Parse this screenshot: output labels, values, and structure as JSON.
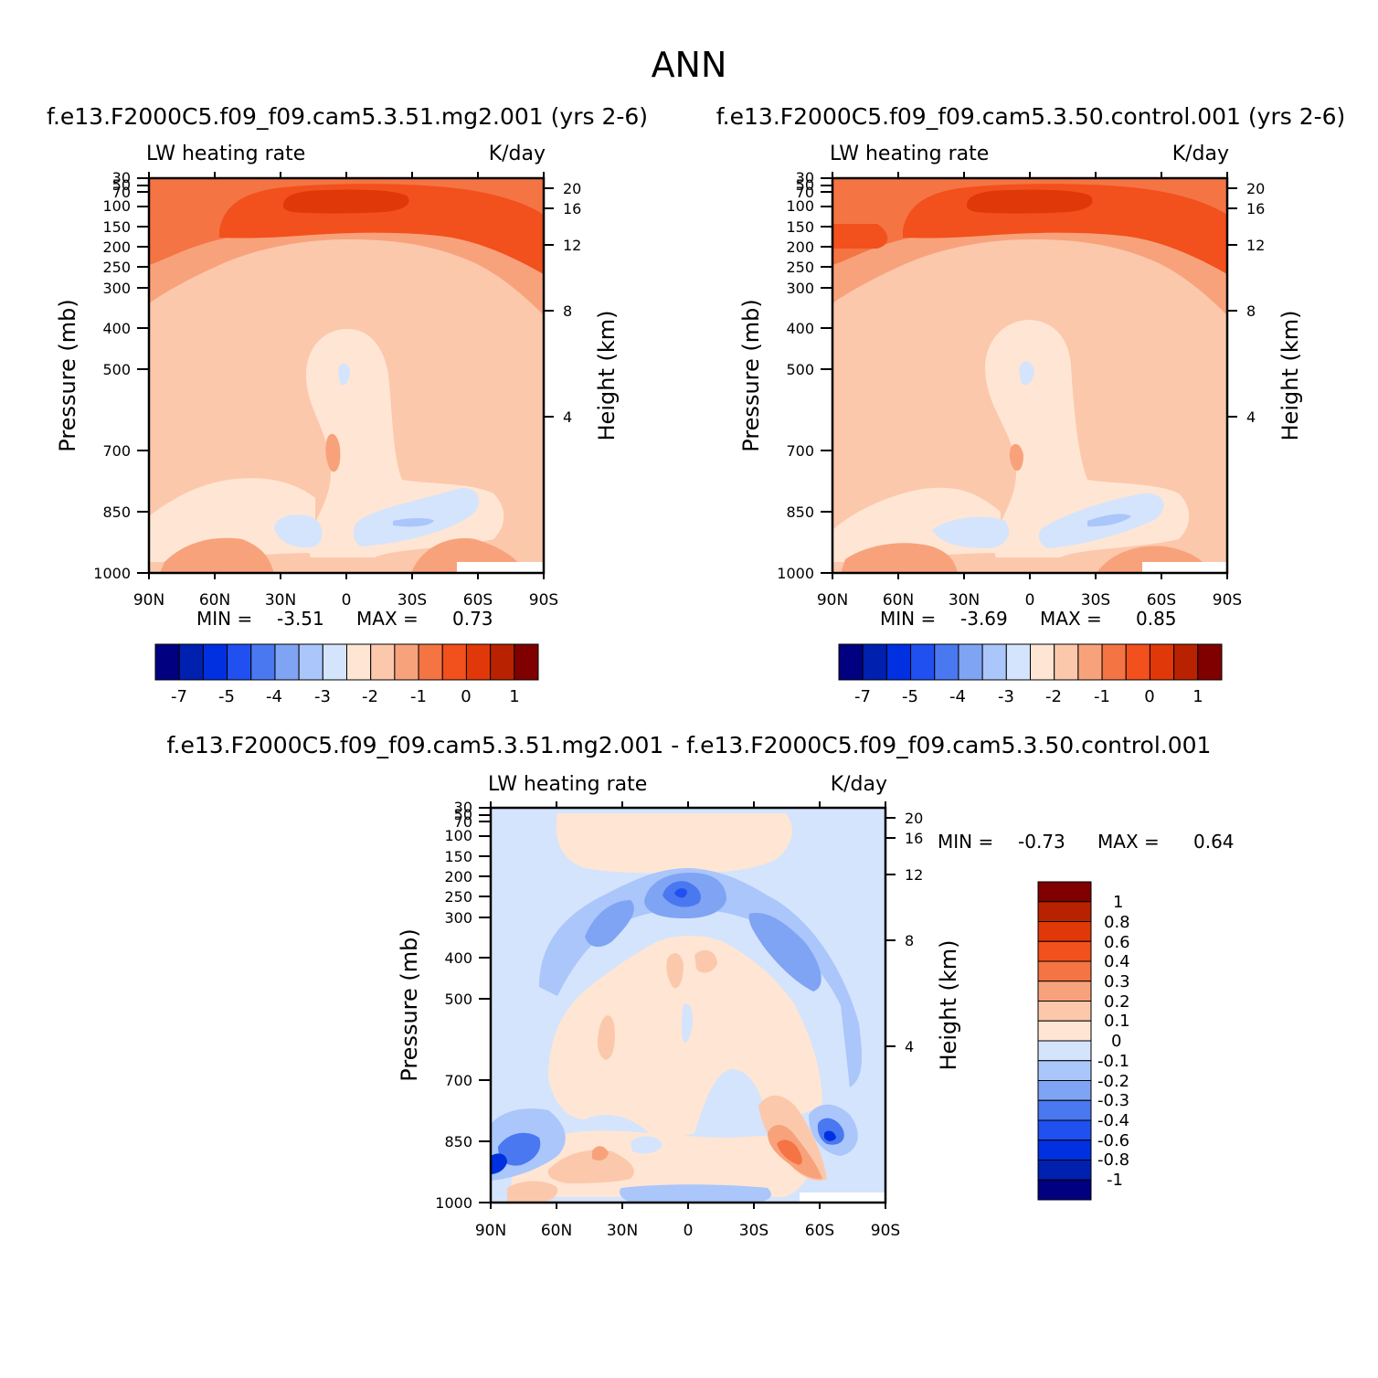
{
  "page_title": "ANN",
  "colors": {
    "diverging": [
      "#000080",
      "#0020b0",
      "#0030e0",
      "#2050f0",
      "#4a78f0",
      "#80a4f4",
      "#aac6fa",
      "#d4e4fc",
      "#ffe6d4",
      "#fcc8ac",
      "#f8a27c",
      "#f57444",
      "#f2501c",
      "#e03808",
      "#b82200",
      "#800000"
    ]
  },
  "chart_data": [
    {
      "id": "panel1",
      "type": "heatmap",
      "title": "f.e13.F2000C5.f09_f09.cam5.3.51.mg2.001  (yrs  2-6)",
      "left_label": "LW  heating  rate",
      "right_label": "K/day",
      "ylabel": "Pressure  (mb)",
      "y2label": "Height  (km)",
      "x_ticks": [
        "90N",
        "60N",
        "30N",
        "0",
        "30S",
        "60S",
        "90S"
      ],
      "y_ticks": [
        "30",
        "50",
        "70",
        "100",
        "150",
        "200",
        "250",
        "300",
        "400",
        "500",
        "700",
        "850",
        "1000"
      ],
      "y2_ticks": [
        "20",
        "16",
        "12",
        "8",
        "4"
      ],
      "min_label": "MIN  =",
      "min_value": "-3.51",
      "max_label": "MAX  =",
      "max_value": "0.73",
      "colorbar_labels": [
        "-7",
        "-5",
        "-4",
        "-3",
        "-2",
        "-1",
        "0",
        "1"
      ]
    },
    {
      "id": "panel2",
      "type": "heatmap",
      "title": "f.e13.F2000C5.f09_f09.cam5.3.50.control.001  (yrs  2-6)",
      "left_label": "LW  heating  rate",
      "right_label": "K/day",
      "ylabel": "Pressure  (mb)",
      "y2label": "Height  (km)",
      "x_ticks": [
        "90N",
        "60N",
        "30N",
        "0",
        "30S",
        "60S",
        "90S"
      ],
      "y_ticks": [
        "30",
        "50",
        "70",
        "100",
        "150",
        "200",
        "250",
        "300",
        "400",
        "500",
        "700",
        "850",
        "1000"
      ],
      "y2_ticks": [
        "20",
        "16",
        "12",
        "8",
        "4"
      ],
      "min_label": "MIN  =",
      "min_value": "-3.69",
      "max_label": "MAX  =",
      "max_value": "0.85",
      "colorbar_labels": [
        "-7",
        "-5",
        "-4",
        "-3",
        "-2",
        "-1",
        "0",
        "1"
      ]
    },
    {
      "id": "panel3",
      "type": "heatmap",
      "title": "f.e13.F2000C5.f09_f09.cam5.3.51.mg2.001  -  f.e13.F2000C5.f09_f09.cam5.3.50.control.001",
      "left_label": "LW  heating  rate",
      "right_label": "K/day",
      "ylabel": "Pressure  (mb)",
      "y2label": "Height  (km)",
      "x_ticks": [
        "90N",
        "60N",
        "30N",
        "0",
        "30S",
        "60S",
        "90S"
      ],
      "y_ticks": [
        "30",
        "50",
        "70",
        "100",
        "150",
        "200",
        "250",
        "300",
        "400",
        "500",
        "700",
        "850",
        "1000"
      ],
      "y2_ticks": [
        "20",
        "16",
        "12",
        "8",
        "4"
      ],
      "min_label": "MIN  =",
      "min_value": "-0.73",
      "max_label": "MAX  =",
      "max_value": "0.64",
      "colorbar_labels": [
        "1",
        "0.8",
        "0.6",
        "0.4",
        "0.3",
        "0.2",
        "0.1",
        "0",
        "-0.1",
        "-0.2",
        "-0.3",
        "-0.4",
        "-0.6",
        "-0.8",
        "-1"
      ]
    }
  ]
}
